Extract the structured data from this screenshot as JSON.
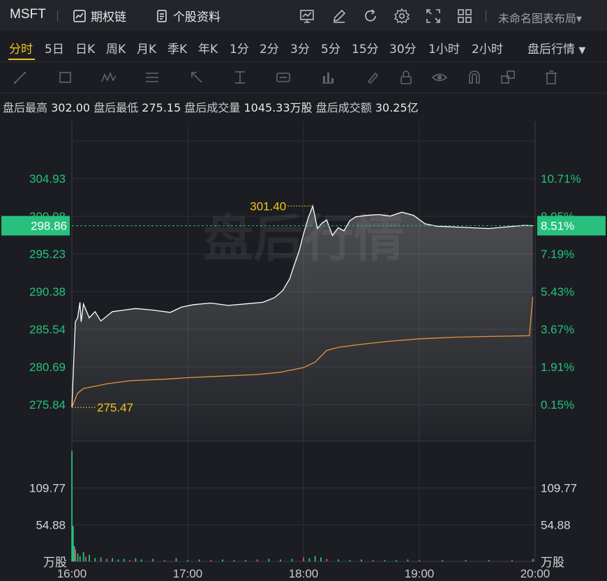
{
  "toolbar": {
    "ticker": "MSFT",
    "option_chain": "期权链",
    "stock_profile": "个股资料",
    "layout_name": "未命名图表布局"
  },
  "periods": [
    "分时",
    "5日",
    "日K",
    "周K",
    "月K",
    "季K",
    "年K",
    "1分",
    "2分",
    "3分",
    "5分",
    "15分",
    "30分",
    "1小时",
    "2小时"
  ],
  "active_period": "分时",
  "session_selector": "盘后行情",
  "info": {
    "high_label": "盘后最高",
    "high_value": "302.00",
    "low_label": "盘后最低",
    "low_value": "275.15",
    "volume_label": "盘后成交量",
    "volume_value": "1045.33万股",
    "amount_label": "盘后成交额",
    "amount_value": "30.25亿"
  },
  "colors": {
    "up": "#27c07d",
    "price_line": "#ffffff",
    "avg_line": "#e8913a",
    "highlight": "#f5c518",
    "grid": "#2c3038",
    "down": "#e05060"
  },
  "chart_data": {
    "type": "line",
    "watermark": "盘后行情",
    "current_price": "298.86",
    "current_pct": "8.51%",
    "price_ticks": [
      "304.93",
      "300.08",
      "295.23",
      "290.38",
      "285.54",
      "280.69",
      "275.84"
    ],
    "pct_ticks": [
      "10.71%",
      "8.95%",
      "7.19%",
      "5.43%",
      "3.67%",
      "1.91%",
      "0.15%"
    ],
    "price_ylim": [
      275.84,
      304.93
    ],
    "time_ticks": [
      "16:00",
      "17:00",
      "18:00",
      "19:00",
      "20:00"
    ],
    "xlim_hours": [
      16,
      20
    ],
    "max_label": "301.40",
    "min_label": "275.47",
    "volume_ticks": [
      "109.77",
      "54.88"
    ],
    "volume_unit": "万股",
    "volume_ylim": [
      0,
      164.6
    ],
    "price_series": [
      [
        16.0,
        275.5
      ],
      [
        16.03,
        286.5
      ],
      [
        16.05,
        287.0
      ],
      [
        16.07,
        289.0
      ],
      [
        16.08,
        286.5
      ],
      [
        16.1,
        288.8
      ],
      [
        16.15,
        287.0
      ],
      [
        16.2,
        287.8
      ],
      [
        16.25,
        286.6
      ],
      [
        16.3,
        287.2
      ],
      [
        16.35,
        287.8
      ],
      [
        16.45,
        288.0
      ],
      [
        16.55,
        288.2
      ],
      [
        16.7,
        288.0
      ],
      [
        16.85,
        287.7
      ],
      [
        16.95,
        288.4
      ],
      [
        17.05,
        288.7
      ],
      [
        17.2,
        288.9
      ],
      [
        17.35,
        288.6
      ],
      [
        17.5,
        288.8
      ],
      [
        17.65,
        289.0
      ],
      [
        17.75,
        289.6
      ],
      [
        17.82,
        290.5
      ],
      [
        17.88,
        292.0
      ],
      [
        17.92,
        293.8
      ],
      [
        17.96,
        295.5
      ],
      [
        18.0,
        297.8
      ],
      [
        18.04,
        299.8
      ],
      [
        18.08,
        301.4
      ],
      [
        18.12,
        298.5
      ],
      [
        18.16,
        299.2
      ],
      [
        18.2,
        299.6
      ],
      [
        18.25,
        297.6
      ],
      [
        18.3,
        298.6
      ],
      [
        18.35,
        298.2
      ],
      [
        18.4,
        299.5
      ],
      [
        18.45,
        300.0
      ],
      [
        18.55,
        300.2
      ],
      [
        18.65,
        300.3
      ],
      [
        18.75,
        300.1
      ],
      [
        18.85,
        300.6
      ],
      [
        18.95,
        300.2
      ],
      [
        19.05,
        299.1
      ],
      [
        19.15,
        298.8
      ],
      [
        19.3,
        298.7
      ],
      [
        19.45,
        298.6
      ],
      [
        19.6,
        298.5
      ],
      [
        19.75,
        298.7
      ],
      [
        19.9,
        298.9
      ],
      [
        19.98,
        298.86
      ]
    ],
    "avg_series": [
      [
        16.0,
        275.5
      ],
      [
        16.05,
        277.3
      ],
      [
        16.1,
        277.9
      ],
      [
        16.2,
        278.2
      ],
      [
        16.3,
        278.5
      ],
      [
        16.5,
        278.9
      ],
      [
        16.8,
        279.1
      ],
      [
        17.0,
        279.3
      ],
      [
        17.3,
        279.5
      ],
      [
        17.6,
        279.7
      ],
      [
        17.8,
        280.0
      ],
      [
        18.0,
        280.6
      ],
      [
        18.1,
        281.3
      ],
      [
        18.2,
        282.8
      ],
      [
        18.3,
        283.2
      ],
      [
        18.5,
        283.6
      ],
      [
        18.75,
        284.0
      ],
      [
        19.0,
        284.3
      ],
      [
        19.3,
        284.5
      ],
      [
        19.6,
        284.6
      ],
      [
        19.95,
        284.7
      ],
      [
        19.98,
        289.7
      ]
    ],
    "volume_series": [
      [
        16.0,
        165.0
      ],
      [
        16.01,
        53.0
      ],
      [
        16.02,
        23.0
      ],
      [
        16.03,
        18.0
      ],
      [
        16.05,
        12.0
      ],
      [
        16.07,
        8.0
      ],
      [
        16.1,
        14.0
      ],
      [
        16.12,
        7.0
      ],
      [
        16.15,
        10.0
      ],
      [
        16.2,
        5.0
      ],
      [
        16.25,
        6.0
      ],
      [
        16.3,
        4.0
      ],
      [
        16.35,
        5.0
      ],
      [
        16.4,
        3.0
      ],
      [
        16.45,
        4.0
      ],
      [
        16.5,
        2.0
      ],
      [
        16.55,
        5.0
      ],
      [
        16.6,
        3.0
      ],
      [
        16.7,
        4.0
      ],
      [
        16.8,
        2.0
      ],
      [
        16.9,
        5.0
      ],
      [
        17.0,
        2.0
      ],
      [
        17.1,
        3.0
      ],
      [
        17.2,
        2.0
      ],
      [
        17.3,
        3.0
      ],
      [
        17.4,
        2.0
      ],
      [
        17.5,
        2.0
      ],
      [
        17.6,
        3.0
      ],
      [
        17.7,
        4.0
      ],
      [
        17.8,
        3.0
      ],
      [
        17.9,
        4.0
      ],
      [
        18.0,
        6.0
      ],
      [
        18.05,
        5.0
      ],
      [
        18.1,
        8.0
      ],
      [
        18.15,
        6.0
      ],
      [
        18.2,
        4.0
      ],
      [
        18.3,
        3.0
      ],
      [
        18.4,
        2.0
      ],
      [
        18.5,
        3.0
      ],
      [
        18.6,
        2.0
      ],
      [
        18.7,
        2.0
      ],
      [
        18.8,
        2.0
      ],
      [
        18.9,
        3.0
      ],
      [
        19.0,
        2.0
      ],
      [
        19.2,
        2.0
      ],
      [
        19.4,
        2.0
      ],
      [
        19.6,
        2.0
      ],
      [
        19.8,
        2.0
      ],
      [
        19.98,
        4.0
      ]
    ],
    "grid": true
  }
}
